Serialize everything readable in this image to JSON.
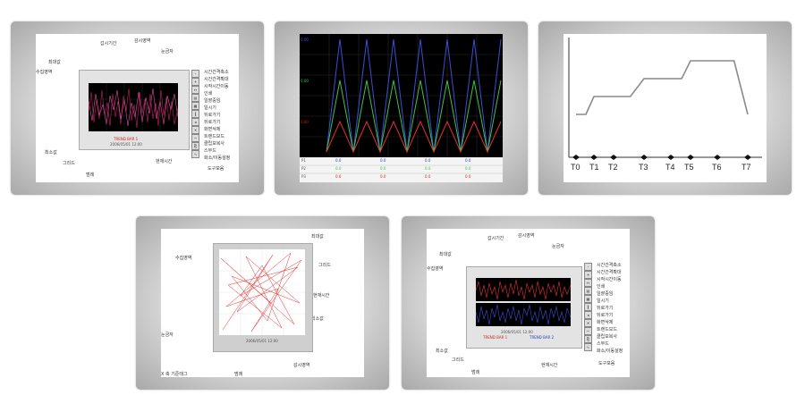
{
  "panel1": {
    "labels": {
      "period": "갑시기간",
      "area": "감시영역",
      "scale": "눈금자",
      "max": "최대값",
      "collect": "수집영역",
      "min": "최소값",
      "grid": "그리드",
      "legend": "범례",
      "now": "현재시간",
      "toolbar": "도구모음",
      "plot_caption_red": "TREND BAR 1",
      "date": "2006/05/01 12:00"
    },
    "menu": [
      "시간간격축소",
      "시간간격확대",
      "시작시간이동",
      "인쇄",
      "일괄중임",
      "일시기",
      "뒤로가기",
      "뒤로가기",
      "화면삭제",
      "트랜드모드",
      "클립보복사",
      "스무드",
      "화소/이동설정"
    ]
  },
  "panel2": {
    "y_labels": {
      "blue": "0.00",
      "green": "0.00",
      "red": "0.00"
    },
    "legend_rows": [
      {
        "tag": "P1",
        "values": [
          "0.0",
          "0.0",
          "0.0",
          "0.0",
          "0.0"
        ]
      },
      {
        "tag": "P2",
        "values": [
          "0.0",
          "0.0",
          "0.0",
          "0.0",
          "0.0"
        ]
      },
      {
        "tag": "P3",
        "values": [
          "0.0",
          "0.0",
          "0.0",
          "0.0",
          "0.0"
        ]
      }
    ]
  },
  "panel3": {
    "chart_data": {
      "type": "line",
      "x": [
        "T0",
        "T1",
        "T2",
        "T3",
        "T4",
        "T5",
        "T6",
        "T7"
      ],
      "series": [
        {
          "values": [
            2,
            3,
            3,
            4,
            4,
            5,
            5,
            2
          ]
        }
      ],
      "xlabel": "",
      "ylabel": ""
    },
    "ticks": [
      "T0",
      "T1",
      "T2",
      "T3",
      "T4",
      "T5",
      "T6",
      "T7"
    ]
  },
  "panel4": {
    "labels": {
      "max": "최대값",
      "collect": "수집영역",
      "grid": "그리드",
      "now": "현재시간",
      "min": "최소값",
      "scale": "눈금자",
      "xtag": "X 축 기준태그",
      "legend": "범례",
      "area": "감시영역"
    },
    "date": "2006/05/01 12:00"
  },
  "panel5": {
    "labels": {
      "period": "갑시기간",
      "area": "감시영역",
      "scale": "눈금자",
      "max": "최대값",
      "collect": "수집영역",
      "min": "최소값",
      "grid": "그리드",
      "legend": "범례",
      "now": "현재시간",
      "toolbar": "도구모음"
    },
    "menu": [
      "시간간격축소",
      "시간간격확대",
      "시작시간이동",
      "인쇄",
      "일괄중임",
      "일시기",
      "뒤로가기",
      "뒤로가기",
      "화면삭제",
      "트랜드모드",
      "클립보복사",
      "스무드",
      "화소/이동설정"
    ],
    "caption_red": "TREND BAR 1",
    "caption_blue": "TREND BAR 2",
    "date": "2006/05/01 12:00"
  },
  "colors": {
    "blue": "#3a4fd8",
    "green": "#3ec24a",
    "red": "#e23232",
    "gray": "#8a8a8a"
  }
}
